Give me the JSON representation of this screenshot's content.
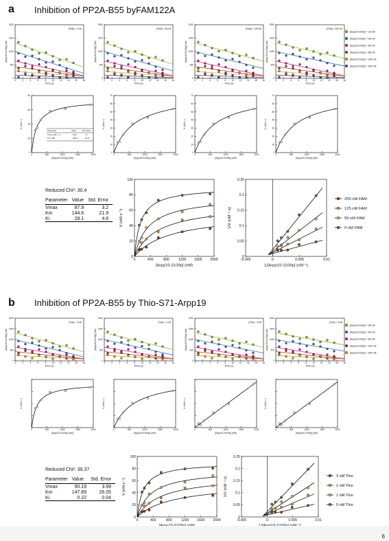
{
  "page_number": "6",
  "panel_a": {
    "label": "a",
    "title": "Inhibition of PP2A-B55 byFAM122A",
    "row1": {
      "conditions": [
        "[FAM] = 0 nM",
        "[FAM] = 50 nM",
        "[FAM] = 125 nM",
        "[FAM] = 250 nM"
      ],
      "ylabel": "[Arpp19-S109p] (nM)",
      "xlabel": "Time (s)",
      "xticks": [
        "0",
        "2",
        "4",
        "6",
        "8",
        "10",
        "12",
        "14",
        "16",
        "18"
      ],
      "yticks": [
        "0",
        "500",
        "1000",
        "1500",
        "2000"
      ],
      "legend": [
        "[Arpp19-S109p] = 120 nM",
        "[Arpp19-S109p] = 180 nM",
        "[Arpp19-S109p] = 300 nM",
        "[Arpp19-S109p] = 600 nM",
        "[Arpp19-S109p] = 1200 nM",
        "[Arpp19-S109p] = 2000 nM"
      ],
      "series_colors": [
        "#9bbb3a",
        "#3b6fc6",
        "#d4219b",
        "#9e3c1f",
        "#e2a72e",
        "#5a4a8a"
      ]
    },
    "row2": {
      "ylabel": "V (nM.s⁻¹)",
      "xlabel": "[Arpp19-S109p] (nM)",
      "xticks": [
        "0",
        "500",
        "1000",
        "1500",
        "2000"
      ],
      "yticks_sets": [
        [
          "0",
          "20",
          "40",
          "60",
          "80"
        ],
        [
          "0",
          "10",
          "20",
          "30",
          "40",
          "50",
          "60",
          "70"
        ],
        [
          "0",
          "10",
          "20",
          "30",
          "40",
          "50",
          "60",
          "70"
        ],
        [
          "0",
          "10",
          "20",
          "30",
          "40",
          "50",
          "60",
          "70"
        ]
      ],
      "inset_table": {
        "headers": [
          "Parameter",
          "Value",
          "Std. Error"
        ],
        "rows": [
          [
            "Vmax (nM.s⁻¹)",
            "90.0",
            "1.7"
          ],
          [
            "Km (nM)",
            "180.6",
            "10.9"
          ]
        ]
      }
    },
    "fit_table": {
      "chi": "Reduced Chi²: 30.4",
      "headers": [
        "Parameter",
        "Value",
        "Std. Error"
      ],
      "rows": [
        [
          "Vmax",
          "87.9",
          "3.2"
        ],
        [
          "Km",
          "144.6",
          "21.9"
        ],
        [
          "Ki",
          "28.1",
          "4.6"
        ]
      ]
    },
    "mm_plot": {
      "ylabel": "V (nM.s⁻¹)",
      "xlabel": "[Arpp19-S109p] (nM)",
      "xticks": [
        "0",
        "400",
        "800",
        "1200",
        "1600",
        "2000"
      ],
      "yticks": [
        "0",
        "20",
        "40",
        "60",
        "80",
        "100"
      ]
    },
    "lb_plot": {
      "ylabel": "1/V (nM⁻¹.s)",
      "xlabel": "1/[Arpp19-S109p] (nM⁻¹)",
      "xticks": [
        "-0.005",
        "0",
        "0.005",
        "0.01"
      ],
      "yticks": [
        "0",
        "0.05",
        "0.1",
        "0.15",
        "0.2",
        "0.25"
      ],
      "legend": [
        "250 nM FAM",
        "125 nM FAM",
        "50 nM FAM",
        "0 nM FAM"
      ],
      "legend_colors": [
        "#9e3c1f",
        "#d4a055",
        "#b5c27a",
        "#4f7a3a"
      ]
    }
  },
  "panel_b": {
    "label": "b",
    "title": "Inhibition of PP2A-B55 by Thio-S71-Arpp19",
    "row1": {
      "conditions": [
        "[Thio] = 0 nM",
        "[Thio] = 1 nM",
        "[Thio] = 2 nM",
        "[Thio] = 3 nM"
      ],
      "ylabel": "[Arpp19-S109p] (nM)",
      "xlabel": "Time (s)",
      "xticks": [
        "0",
        "2",
        "4",
        "6",
        "8",
        "10",
        "12",
        "14",
        "16",
        "18"
      ],
      "yticks": [
        "0",
        "500",
        "1000",
        "1500",
        "2000"
      ],
      "legend": [
        "[Arpp19-S109p] = 180 nM",
        "[Arpp19-S109p] = 300 nM",
        "[Arpp19-S109p] = 600 nM",
        "[Arpp19-S109p] = 1200 nM",
        "[Arpp19-S109p] = 2000 nM"
      ]
    },
    "row2": {
      "ylabel": "V (nM.s⁻¹)",
      "xlabel": "[Arpp19-S109p] (nM)",
      "xticks": [
        "0",
        "500",
        "1000",
        "1500",
        "2000"
      ]
    },
    "fit_table": {
      "chi": "Reduced Chi²: 39.37",
      "headers": [
        "Parameter",
        "Value",
        "Std. Error"
      ],
      "rows": [
        [
          "Vmax",
          "90.19",
          "3.99"
        ],
        [
          "Km",
          "147.89",
          "26.05"
        ],
        [
          "Ki",
          "0.22",
          "0.04"
        ]
      ]
    },
    "mm_plot": {
      "ylabel": "V (nM.s⁻¹)",
      "xlabel": "[Arpp19-S109p] (nM)",
      "xticks": [
        "0",
        "400",
        "800",
        "1200",
        "1600",
        "2000"
      ],
      "yticks": [
        "0",
        "20",
        "40",
        "60",
        "80",
        "100"
      ]
    },
    "lb_plot": {
      "ylabel": "1/V (nM⁻¹.s)",
      "xlabel": "1/[Arpp19-S109p] (nM⁻¹)",
      "xticks": [
        "-0.005",
        "0",
        "0.005",
        "0.01"
      ],
      "yticks": [
        "0",
        "0.05",
        "0.1",
        "0.15",
        "0.2",
        "0.25"
      ],
      "legend": [
        "3 nM Thio",
        "2 nM Thio",
        "1 nM Thio",
        "0 nM Thio"
      ],
      "legend_colors": [
        "#9e3c1f",
        "#d4a055",
        "#b5c27a",
        "#4f7a3a"
      ]
    }
  }
}
